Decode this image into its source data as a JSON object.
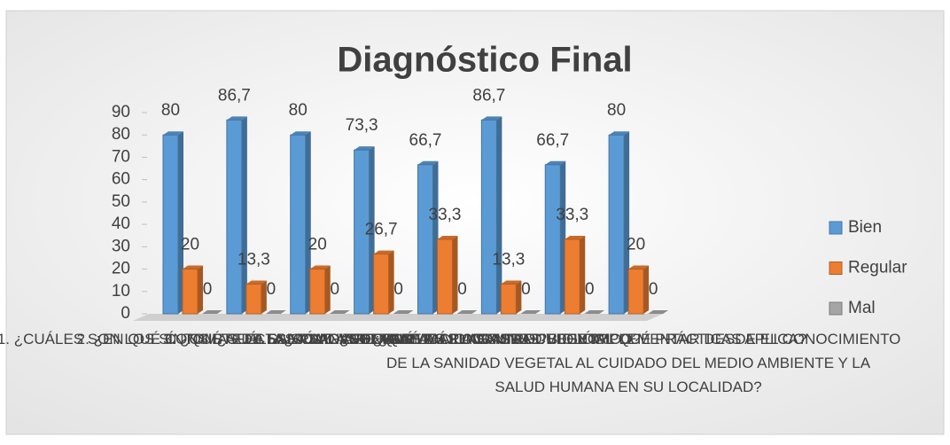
{
  "chart_data": {
    "type": "bar3d",
    "title": "Diagnóstico Final",
    "categories": [
      "1. ¿CUÁLES SON LOS SÍNTOMAS DE LAS PLAGAS?",
      "2. ¿EN QUÉ CONSISTE LA SANIDAD VEGETAL?",
      "3. ¿QUÉ AFECTA LA SANIDAD VEGETAL?",
      "4. ¿CUÁLES SON LAS PLAGAS MÁS COMUNES?",
      "5. ¿CÓMO AFECTAN LAS PLAGAS AL CULTIVO?",
      "6. ¿QUÉ ES EL CONTROL BIOLÓGICO?",
      "7. ¿CONFORME A LA SANIDAD VEGETAL QUÉ PRÁCTICAS APLICA?",
      "8. ¿QUÉ ACCIONES SE PUEDEN IMPLEMENTAR DESDE EL CONOCIMIENTO DE LA SANIDAD VEGETAL AL CUIDADO DEL MEDIO AMBIENTE Y LA SALUD HUMANA EN SU LOCALIDAD?"
    ],
    "series": [
      {
        "name": "Bien",
        "color": "#5b9bd5",
        "values": [
          80,
          86.7,
          80,
          73.3,
          66.7,
          86.7,
          66.7,
          80
        ],
        "value_labels": [
          "80",
          "86,7",
          "80",
          "73,3",
          "66,7",
          "86,7",
          "66,7",
          "80"
        ]
      },
      {
        "name": "Regular",
        "color": "#ed7d31",
        "values": [
          20,
          13.3,
          20,
          26.7,
          33.3,
          13.3,
          33.3,
          20
        ],
        "value_labels": [
          "20",
          "13,3",
          "20",
          "26,7",
          "33,3",
          "13,3",
          "33,3",
          "20"
        ]
      },
      {
        "name": "Mal",
        "color": "#a5a5a5",
        "values": [
          0,
          0,
          0,
          0,
          0,
          0,
          0,
          0
        ],
        "value_labels": [
          "0",
          "0",
          "0",
          "0",
          "0",
          "0",
          "0",
          "0"
        ]
      }
    ],
    "ylim": [
      0,
      90
    ],
    "yticks": [
      0,
      10,
      20,
      30,
      40,
      50,
      60,
      70,
      80,
      90
    ],
    "legend": "right"
  }
}
